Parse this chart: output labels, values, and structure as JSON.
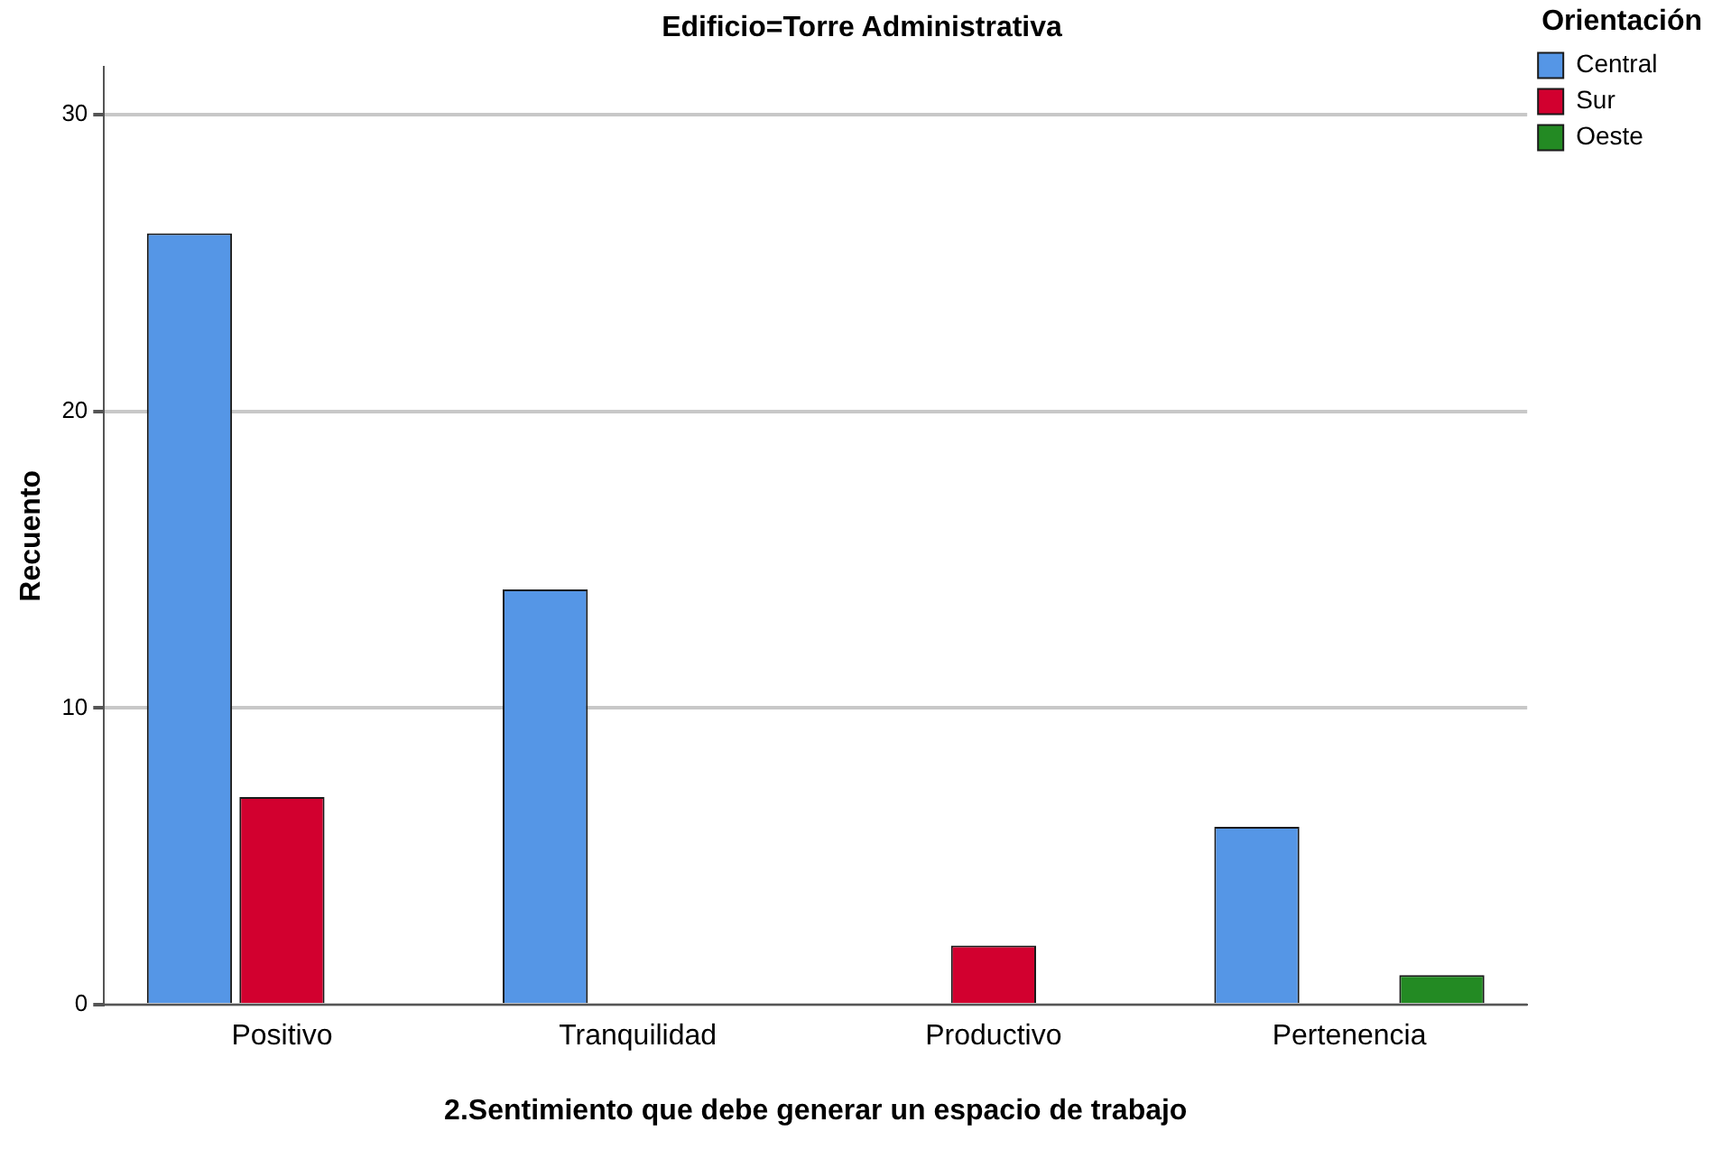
{
  "chart_data": {
    "type": "bar",
    "title": "Edificio=Torre Administrativa",
    "xlabel": "2.Sentimiento que debe generar un espacio de trabajo",
    "ylabel": "Recuento",
    "legend_title": "Orientación",
    "categories": [
      "Positivo",
      "Tranquilidad",
      "Productivo",
      "Pertenencia"
    ],
    "series": [
      {
        "name": "Central",
        "color": "#5596e6",
        "values": [
          26,
          14,
          null,
          6
        ]
      },
      {
        "name": "Sur",
        "color": "#d2002f",
        "values": [
          7,
          null,
          2,
          null
        ]
      },
      {
        "name": "Oeste",
        "color": "#238a23",
        "values": [
          null,
          null,
          null,
          1
        ]
      }
    ],
    "ylim": [
      0,
      31.6
    ],
    "yticks": [
      0,
      10,
      20,
      30
    ],
    "grid": "y",
    "legend": "top right"
  }
}
